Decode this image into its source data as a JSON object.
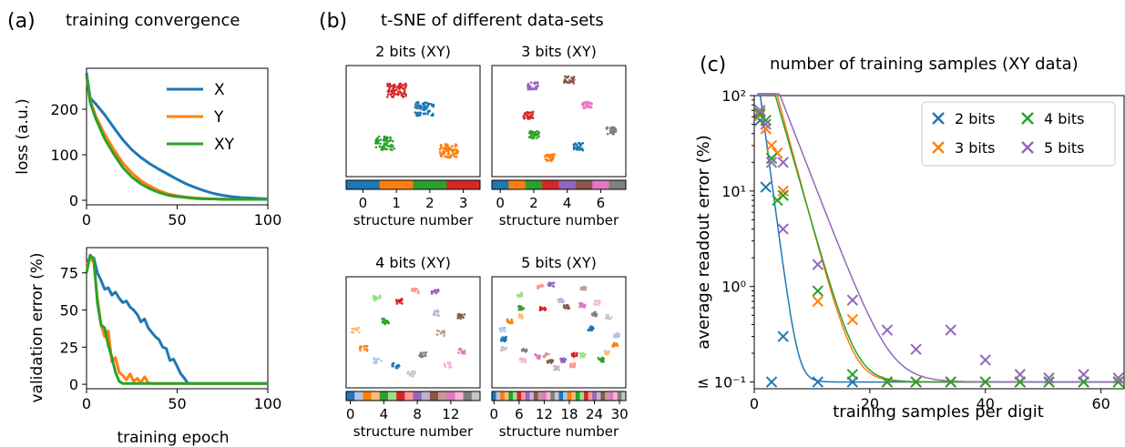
{
  "panels": {
    "a": {
      "letter": "(a)",
      "title": "training convergence"
    },
    "b": {
      "letter": "(b)",
      "title": "t-SNE of different data-sets"
    },
    "c": {
      "letter": "(c)",
      "title": "number of training samples (XY data)"
    }
  },
  "colors": {
    "blue": "#1f77b4",
    "orange": "#ff7f0e",
    "green": "#2ca02c",
    "red": "#d62728",
    "purple": "#9467bd",
    "brown": "#8c564b",
    "pink": "#e377c2",
    "gray": "#7f7f7f"
  },
  "chart_data": [
    {
      "id": "loss",
      "type": "line",
      "title": "",
      "xlabel": "",
      "ylabel": "loss (a.u.)",
      "xlim": [
        0,
        100
      ],
      "ylim": [
        -10,
        290
      ],
      "xticks": [
        "0",
        "50",
        "100"
      ],
      "yticks": [
        "0",
        "100",
        "200"
      ],
      "legend": "top-right",
      "series": [
        {
          "name": "X",
          "color": "#1f77b4",
          "x": [
            0,
            2,
            5,
            10,
            15,
            20,
            25,
            30,
            35,
            40,
            45,
            50,
            55,
            60,
            65,
            70,
            75,
            80,
            85,
            90,
            95,
            100
          ],
          "y": [
            280,
            225,
            212,
            188,
            160,
            133,
            111,
            94,
            80,
            68,
            57,
            46,
            36,
            28,
            21,
            15,
            11,
            8,
            6,
            5,
            4,
            3
          ]
        },
        {
          "name": "Y",
          "color": "#ff7f0e",
          "x": [
            0,
            2,
            5,
            10,
            15,
            20,
            25,
            30,
            35,
            40,
            45,
            50,
            55,
            60,
            65,
            70,
            75,
            80,
            85,
            90,
            95,
            100
          ],
          "y": [
            275,
            220,
            185,
            145,
            112,
            82,
            60,
            43,
            31,
            21,
            14,
            10,
            7,
            5,
            4,
            3,
            3,
            2,
            2,
            2,
            2,
            2
          ]
        },
        {
          "name": "XY",
          "color": "#2ca02c",
          "x": [
            0,
            2,
            5,
            10,
            15,
            20,
            25,
            30,
            35,
            40,
            45,
            50,
            55,
            60,
            65,
            70,
            75,
            80,
            85,
            90,
            95,
            100
          ],
          "y": [
            275,
            215,
            180,
            135,
            102,
            72,
            51,
            36,
            25,
            17,
            11,
            8,
            6,
            4,
            3,
            3,
            2,
            2,
            2,
            2,
            2,
            2
          ]
        }
      ]
    },
    {
      "id": "validation",
      "type": "line",
      "title": "",
      "xlabel": "training epoch",
      "ylabel": "validation error (%)",
      "xlim": [
        0,
        100
      ],
      "ylim": [
        -3,
        92
      ],
      "xticks": [
        "0",
        "50",
        "100"
      ],
      "yticks": [
        "0",
        "25",
        "50",
        "75"
      ],
      "series": [
        {
          "name": "X",
          "color": "#1f77b4",
          "x": [
            0,
            2,
            4,
            6,
            8,
            10,
            12,
            14,
            16,
            18,
            20,
            22,
            24,
            26,
            28,
            30,
            32,
            34,
            36,
            38,
            40,
            42,
            44,
            46,
            48,
            50,
            52,
            54,
            56,
            100
          ],
          "y": [
            80,
            86,
            85,
            75,
            70,
            64,
            65,
            60,
            62,
            58,
            55,
            56,
            52,
            50,
            47,
            42,
            44,
            38,
            35,
            32,
            30,
            25,
            24,
            16,
            17,
            12,
            7,
            4,
            0.5,
            0.5
          ]
        },
        {
          "name": "Y",
          "color": "#ff7f0e",
          "x": [
            0,
            2,
            4,
            6,
            8,
            10,
            12,
            14,
            16,
            18,
            20,
            22,
            24,
            26,
            28,
            30,
            32,
            34,
            36,
            100
          ],
          "y": [
            80,
            85,
            82,
            58,
            40,
            32,
            36,
            15,
            18,
            8,
            6,
            3,
            7,
            2,
            4,
            1,
            5,
            1,
            0.5,
            0.5
          ]
        },
        {
          "name": "XY",
          "color": "#2ca02c",
          "x": [
            0,
            2,
            4,
            6,
            8,
            10,
            12,
            14,
            16,
            18,
            20,
            100
          ],
          "y": [
            75,
            87,
            84,
            55,
            40,
            38,
            26,
            18,
            8,
            2,
            0.5,
            0.5
          ]
        }
      ]
    },
    {
      "id": "tsne",
      "type": "scatter",
      "title": "t-SNE of different data-sets",
      "subplots": [
        {
          "title": "2 bits (XY)",
          "colorbar_label": "structure number",
          "colorbar_ticks": [
            "0",
            "1",
            "2",
            "3"
          ],
          "n": 4
        },
        {
          "title": "3 bits (XY)",
          "colorbar_label": "structure number",
          "colorbar_ticks": [
            "0",
            "2",
            "4",
            "6"
          ],
          "n": 8
        },
        {
          "title": "4 bits (XY)",
          "colorbar_label": "structure number",
          "colorbar_ticks": [
            "0",
            "4",
            "8",
            "12"
          ],
          "n": 16
        },
        {
          "title": "5 bits (XY)",
          "colorbar_label": "structure number",
          "colorbar_ticks": [
            "0",
            "6",
            "12",
            "18",
            "24",
            "30"
          ],
          "n": 32
        }
      ]
    },
    {
      "id": "samples",
      "type": "scatter",
      "title": "number of training samples (XY data)",
      "xlabel": "training samples per digit",
      "ylabel": "average readout error (%)",
      "yscale": "log",
      "xlim": [
        0,
        64
      ],
      "ylim": [
        0.085,
        100
      ],
      "xticks": [
        "0",
        "20",
        "40",
        "60"
      ],
      "ytick_labels": [
        "≤ 10⁻¹",
        "10⁰",
        "10¹",
        "10²"
      ],
      "legend": "top-right",
      "series": [
        {
          "name": "2 bits",
          "color": "#1f77b4",
          "x": [
            1,
            2,
            3,
            5,
            11,
            17,
            23,
            28,
            34,
            40,
            46,
            51,
            57,
            63
          ],
          "y": [
            55,
            11,
            0.1,
            0.3,
            0.1,
            0.1,
            0.1,
            0.1,
            0.1,
            0.1,
            0.1,
            0.1,
            0.1,
            0.1
          ]
        },
        {
          "name": "3 bits",
          "color": "#ff7f0e",
          "x": [
            1,
            2,
            3,
            4,
            5,
            11,
            17,
            23,
            28,
            34,
            40,
            46,
            51,
            57,
            63
          ],
          "y": [
            62,
            45,
            30,
            25,
            10,
            0.7,
            0.45,
            0.1,
            0.1,
            0.1,
            0.1,
            0.1,
            0.1,
            0.1,
            0.1
          ]
        },
        {
          "name": "4 bits",
          "color": "#2ca02c",
          "x": [
            1,
            2,
            3,
            4,
            5,
            11,
            17,
            23,
            28,
            34,
            40,
            46,
            51,
            57,
            63
          ],
          "y": [
            65,
            55,
            22,
            8,
            9,
            0.9,
            0.12,
            0.1,
            0.1,
            0.1,
            0.1,
            0.1,
            0.1,
            0.1,
            0.1
          ]
        },
        {
          "name": "5 bits",
          "color": "#9467bd",
          "x": [
            1,
            2,
            3,
            5,
            5,
            11,
            17,
            23,
            28,
            34,
            40,
            46,
            51,
            57,
            63
          ],
          "y": [
            70,
            50,
            20,
            20,
            4,
            1.7,
            0.72,
            0.35,
            0.22,
            0.35,
            0.17,
            0.12,
            0.11,
            0.12,
            0.11
          ]
        }
      ],
      "fits": [
        {
          "name": "2 bits",
          "color": "#1f77b4",
          "A": 300,
          "k": 1.05,
          "floor": 0.1
        },
        {
          "name": "3 bits",
          "color": "#ff7f0e",
          "A": 800,
          "k": 0.52,
          "floor": 0.1
        },
        {
          "name": "4 bits",
          "color": "#2ca02c",
          "A": 600,
          "k": 0.49,
          "floor": 0.1
        },
        {
          "name": "5 bits",
          "color": "#9467bd",
          "A": 500,
          "k": 0.36,
          "floor": 0.1
        }
      ]
    }
  ]
}
